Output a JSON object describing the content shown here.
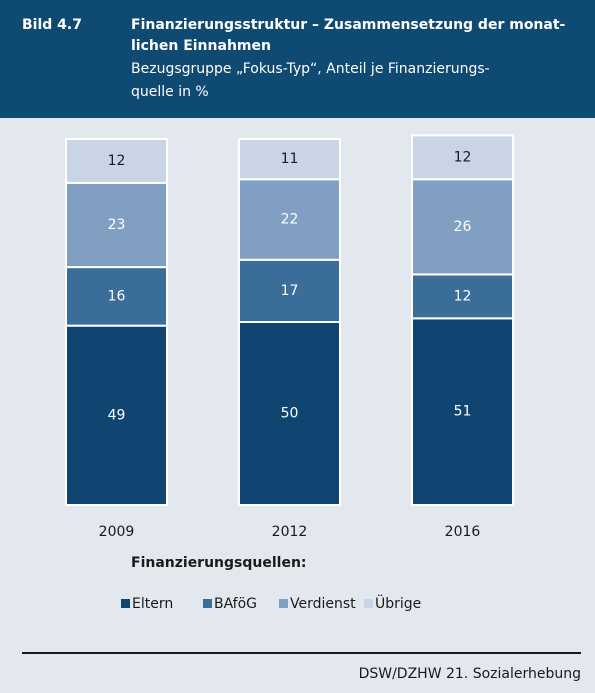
{
  "header": {
    "label": "Bild 4.7",
    "title": [
      "Finanzierungsstruktur – Zusammensetzung der monat-",
      "lichen Einnahmen"
    ],
    "subtitle": [
      "Bezugsgruppe „Fokus-Typ“, Anteil je Finanzierungs-",
      "quelle in %"
    ]
  },
  "chart_data": {
    "type": "stacked_bar",
    "categories": [
      "2009",
      "2012",
      "2016"
    ],
    "series": [
      {
        "name": "Eltern",
        "color": "#0f4570",
        "values": [
          49,
          50,
          51
        ]
      },
      {
        "name": "BAföG",
        "color": "#3a6e99",
        "values": [
          16,
          17,
          12
        ]
      },
      {
        "name": "Verdienst",
        "color": "#819fc3",
        "values": [
          23,
          22,
          26
        ]
      },
      {
        "name": "Übrige",
        "color": "#c9d5e6",
        "values": [
          12,
          11,
          12
        ]
      }
    ],
    "ylim": [
      0,
      100
    ],
    "legend_title": "Finanzierungsquellen:"
  },
  "source": "DSW/DZHW 21. Sozialerhebung"
}
